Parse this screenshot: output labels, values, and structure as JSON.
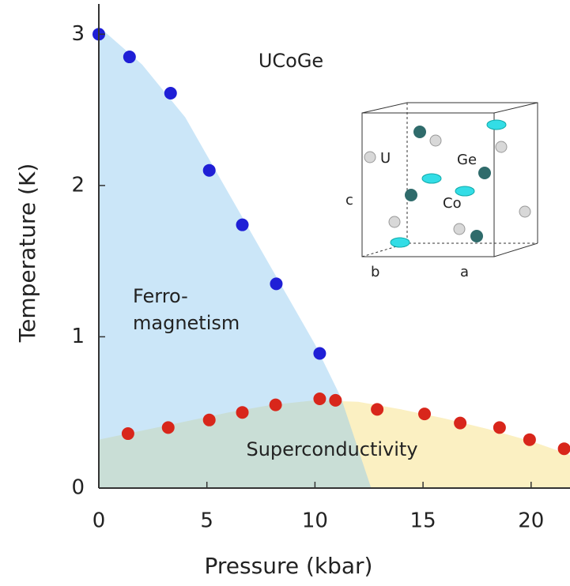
{
  "chart_data": {
    "type": "scatter",
    "title": "UCoGe",
    "x_label": "Pressure (kbar)",
    "y_label": "Temperature (K)",
    "xlim": [
      0,
      21.8
    ],
    "ylim": [
      0,
      3.2
    ],
    "xticks": [
      0,
      5,
      10,
      15,
      20
    ],
    "yticks": [
      0,
      1,
      2,
      3
    ],
    "series": [
      {
        "color": "#1f1fd6",
        "x": [
          0,
          1.42,
          3.32,
          5.11,
          6.64,
          8.21,
          10.22
        ],
        "values": [
          3.0,
          2.85,
          2.61,
          2.1,
          1.74,
          1.35,
          0.89
        ]
      },
      {
        "color": "#d8261b",
        "x": [
          1.35,
          3.21,
          5.11,
          6.64,
          8.18,
          10.22,
          10.95,
          12.88,
          15.07,
          16.72,
          18.54,
          19.93,
          21.53
        ],
        "values": [
          0.36,
          0.4,
          0.45,
          0.5,
          0.55,
          0.59,
          0.58,
          0.52,
          0.49,
          0.43,
          0.4,
          0.32,
          0.26
        ]
      }
    ],
    "regions": [
      {
        "label": "Superconductivity",
        "color": "#fbf0c2",
        "x": [
          0,
          2,
          4,
          6,
          8,
          10,
          12,
          14,
          16,
          18,
          20,
          21.8
        ],
        "values": [
          0.32,
          0.38,
          0.44,
          0.5,
          0.55,
          0.58,
          0.57,
          0.52,
          0.46,
          0.39,
          0.31,
          0.22
        ]
      },
      {
        "label_lines": [
          "Ferro-",
          "magnetism"
        ],
        "color": "rgba(140,200,240,0.45)",
        "x": [
          0,
          2,
          4,
          6,
          8,
          10,
          11.2,
          12.6
        ],
        "values": [
          3.05,
          2.8,
          2.45,
          1.95,
          1.45,
          0.95,
          0.6,
          0
        ]
      }
    ],
    "inset_labels": {
      "U": "U",
      "Ge": "Ge",
      "Co": "Co",
      "c": "c",
      "b": "b",
      "a": "a"
    }
  }
}
